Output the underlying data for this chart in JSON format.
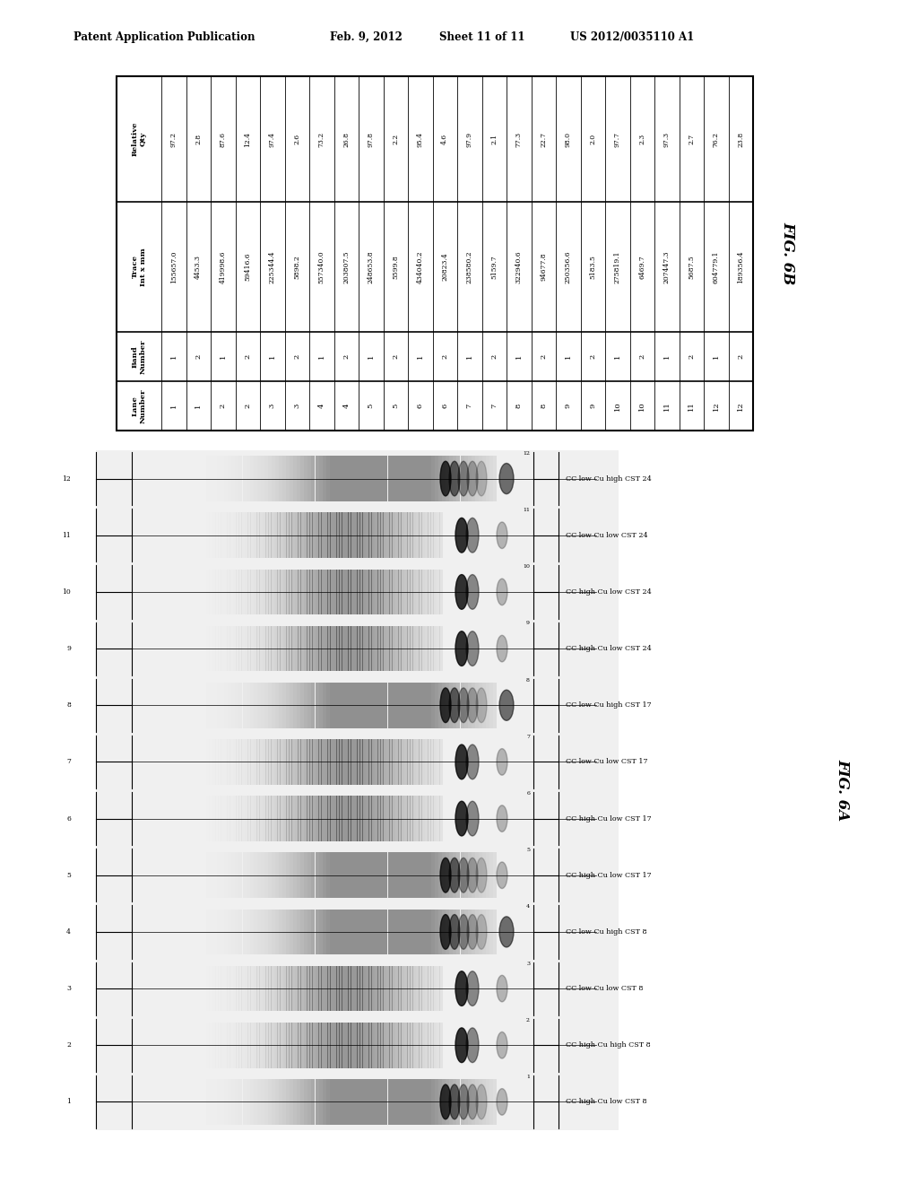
{
  "header_left": "Patent Application Publication",
  "header_date": "Feb. 9, 2012",
  "header_sheet": "Sheet 11 of 11",
  "header_patent": "US 2012/0035110 A1",
  "fig6b_label": "FIG. 6B",
  "fig6a_label": "FIG. 6A",
  "table_col_headers": [
    "Lane\nNumber",
    "Band\nNumber",
    "Trace\nInt x mm",
    "Relative\nQty"
  ],
  "table_data": [
    [
      "1",
      "1",
      "155657.0",
      "97.2"
    ],
    [
      "1",
      "2",
      "4453.3",
      "2.8"
    ],
    [
      "2",
      "1",
      "419998.6",
      "87.6"
    ],
    [
      "2",
      "2",
      "59416.6",
      "12.4"
    ],
    [
      "3",
      "1",
      "225344.4",
      "97.4"
    ],
    [
      "3",
      "2",
      "5898.2",
      "2.6"
    ],
    [
      "4",
      "1",
      "557340.0",
      "73.2"
    ],
    [
      "4",
      "2",
      "203807.5",
      "26.8"
    ],
    [
      "5",
      "1",
      "248653.8",
      "97.8"
    ],
    [
      "5",
      "2",
      "5599.8",
      "2.2"
    ],
    [
      "6",
      "1",
      "434040.2",
      "95.4"
    ],
    [
      "6",
      "2",
      "20823.4",
      "4.6"
    ],
    [
      "7",
      "1",
      "238580.2",
      "97.9"
    ],
    [
      "7",
      "2",
      "5159.7",
      "2.1"
    ],
    [
      "8",
      "1",
      "322940.6",
      "77.3"
    ],
    [
      "8",
      "2",
      "94677.8",
      "22.7"
    ],
    [
      "9",
      "1",
      "250356.6",
      "98.0"
    ],
    [
      "9",
      "2",
      "5183.5",
      "2.0"
    ],
    [
      "10",
      "1",
      "275819.1",
      "97.7"
    ],
    [
      "10",
      "2",
      "6469.7",
      "2.3"
    ],
    [
      "11",
      "1",
      "207447.3",
      "97.3"
    ],
    [
      "11",
      "2",
      "5687.5",
      "2.7"
    ],
    [
      "12",
      "1",
      "604779.1",
      "76.2"
    ],
    [
      "12",
      "2",
      "189356.4",
      "23.8"
    ]
  ],
  "gel_labels_right": [
    "CC high Cu low CST 8",
    "CC high Cu high CST 8",
    "CC low Cu low CST 8",
    "CC low Cu high CST 8",
    "CC high Cu low CST 17",
    "CC high Cu low CST 17",
    "CC low Cu low CST 17",
    "CC low Cu high CST 17",
    "CC high Cu low CST 24",
    "CC high Cu low CST 24",
    "CC low Cu low CST 24",
    "CC low Cu high CST 24"
  ],
  "background_color": "#ffffff",
  "text_color": "#000000"
}
